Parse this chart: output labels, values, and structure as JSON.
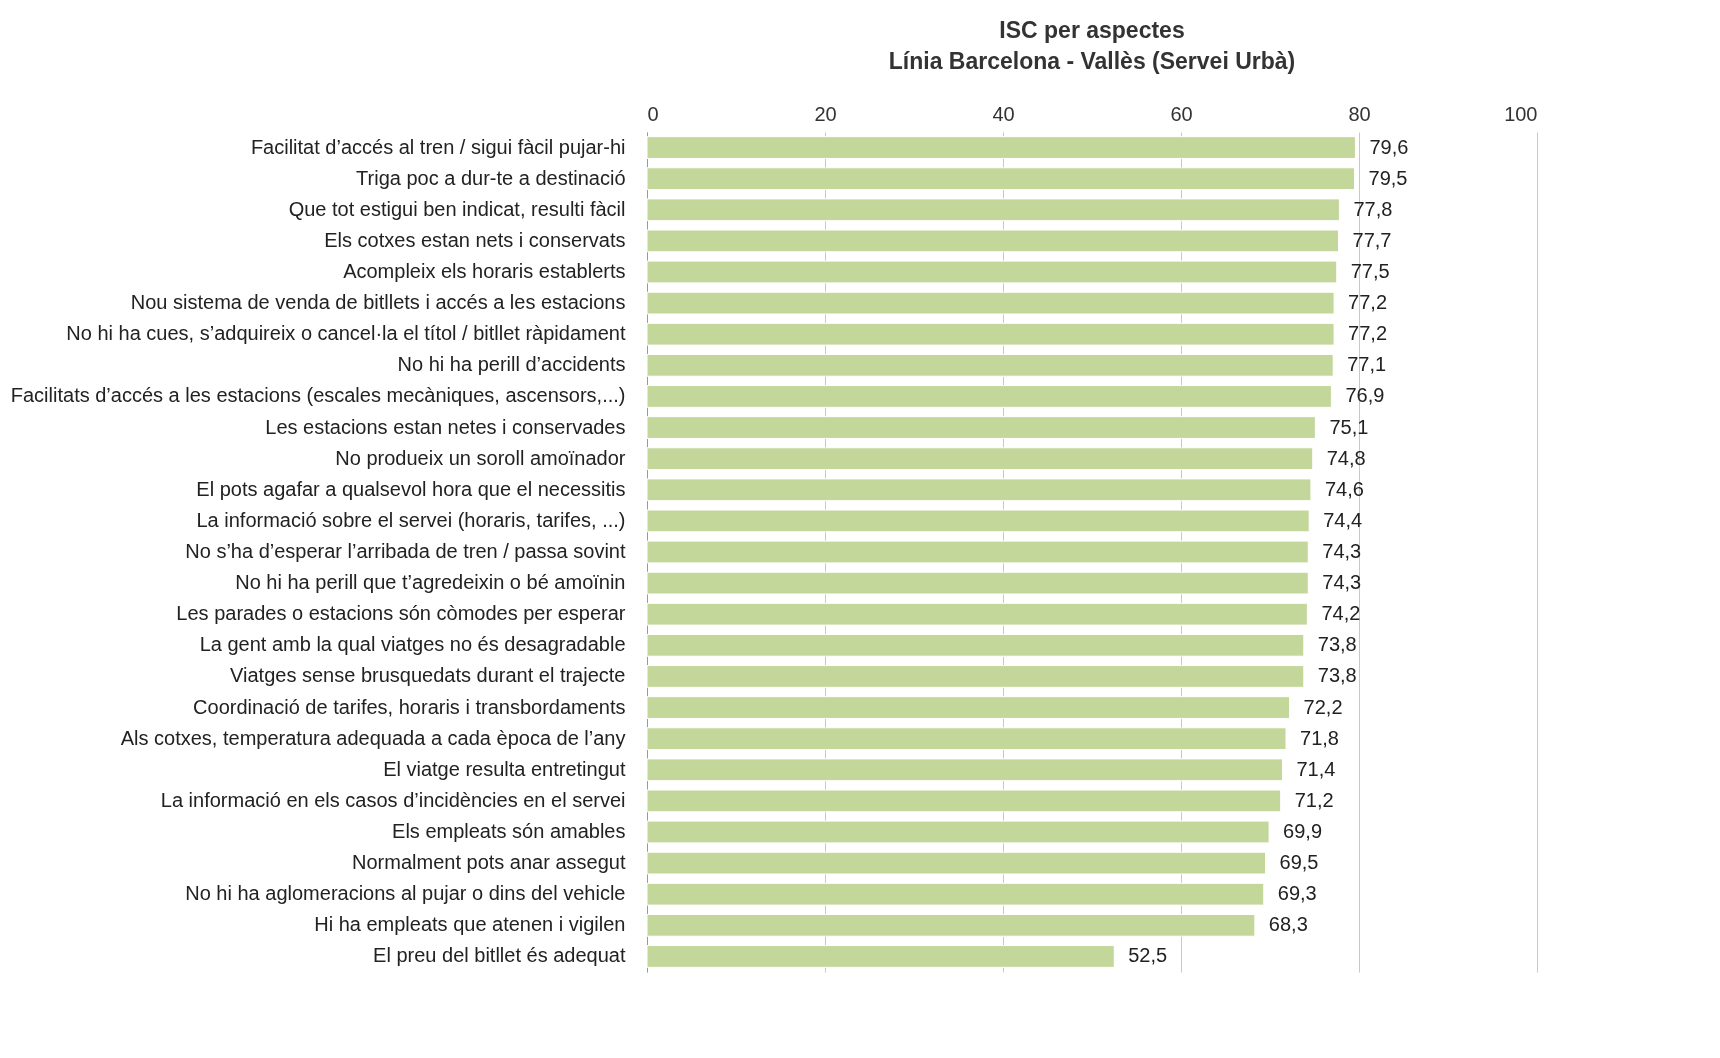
{
  "chart_data": {
    "type": "bar",
    "orientation": "horizontal",
    "title": "ISC per aspectes",
    "subtitle": "Línia Barcelona - Vallès (Servei Urbà)",
    "categories": [
      "Facilitat d’accés al tren / sigui fàcil pujar-hi",
      "Triga poc a dur-te a destinació",
      "Que tot estigui ben indicat, resulti fàcil",
      "Els cotxes estan nets i conservats",
      "Acompleix els horaris establerts",
      "Nou sistema de venda de bitllets i accés a les estacions",
      "No hi ha cues, s’adquireix o cancel·la el títol / bitllet ràpidament",
      "No hi ha perill d’accidents",
      "Facilitats d’accés a les estacions (escales mecàniques, ascensors,...)",
      "Les estacions estan netes i conservades",
      "No produeix un soroll amoïnador",
      "El pots agafar a qualsevol hora que el necessitis",
      "La informació sobre el servei (horaris, tarifes, ...)",
      "No s’ha d’esperar l’arribada de tren / passa sovint",
      "No hi ha perill que t’agredeixin o bé amoïnin",
      "Les parades o estacions són còmodes per esperar",
      "La gent amb la qual viatges no és desagradable",
      "Viatges sense brusquedats durant el trajecte",
      "Coordinació de tarifes, horaris i transbordaments",
      "Als cotxes, temperatura adequada a cada època de l’any",
      "El viatge resulta entretingut",
      "La informació en els casos d’incidències en el servei",
      "Els empleats són amables",
      "Normalment pots anar assegut",
      "No hi ha aglomeracions al pujar o dins del vehicle",
      "Hi ha empleats que atenen i vigilen",
      "El preu del bitllet és adequat"
    ],
    "values": [
      79.6,
      79.5,
      77.8,
      77.7,
      77.5,
      77.2,
      77.2,
      77.1,
      76.9,
      75.1,
      74.8,
      74.6,
      74.4,
      74.3,
      74.3,
      74.2,
      73.8,
      73.8,
      72.2,
      71.8,
      71.4,
      71.2,
      69.9,
      69.5,
      69.3,
      68.3,
      52.5
    ],
    "value_labels": [
      "79,6",
      "79,5",
      "77,8",
      "77,7",
      "77,5",
      "77,2",
      "77,2",
      "77,1",
      "76,9",
      "75,1",
      "74,8",
      "74,6",
      "74,4",
      "74,3",
      "74,3",
      "74,2",
      "73,8",
      "73,8",
      "72,2",
      "71,8",
      "71,4",
      "71,2",
      "69,9",
      "69,5",
      "69,3",
      "68,3",
      "52,5"
    ],
    "color": "#c4d79b",
    "xlim": [
      0,
      100
    ],
    "xticks": [
      0,
      20,
      40,
      60,
      80,
      100
    ],
    "grid": "x"
  }
}
